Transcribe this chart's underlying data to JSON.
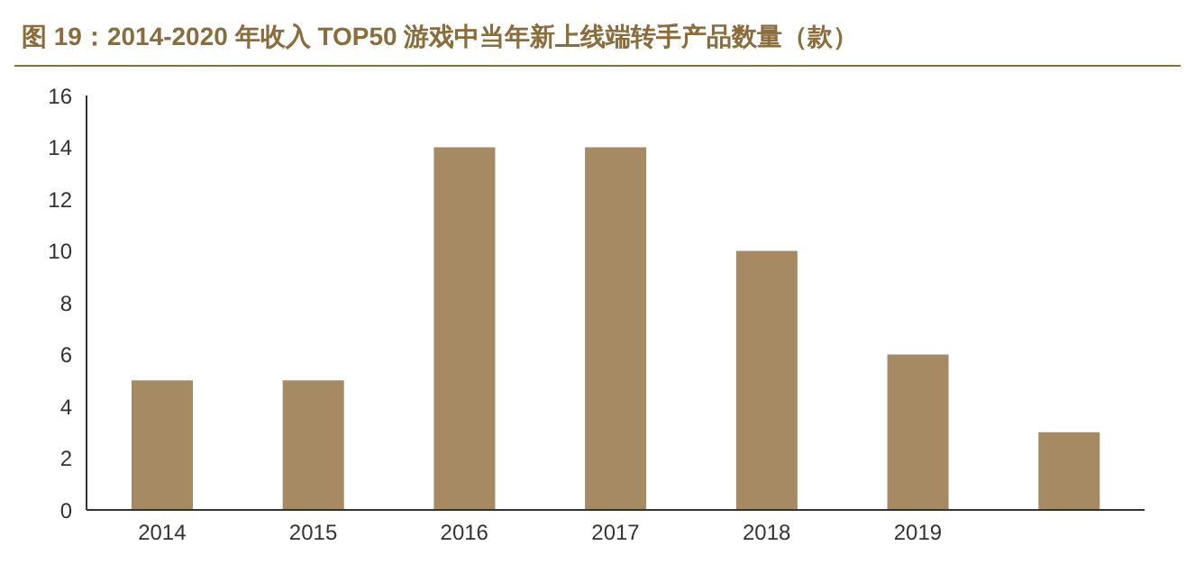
{
  "chart_data": {
    "type": "bar",
    "title": "图 19：2014-2020 年收入 TOP50 游戏中当年新上线端转手产品数量（款）",
    "categories": [
      "2014",
      "2015",
      "2016",
      "2017",
      "2018",
      "2019",
      null
    ],
    "values": [
      5,
      5,
      14,
      14,
      10,
      6,
      3
    ],
    "color": "#a68a64",
    "ylim": [
      0,
      16
    ],
    "yticks": [
      0,
      2,
      4,
      6,
      8,
      10,
      12,
      14,
      16
    ],
    "grid": false,
    "legend": false
  }
}
